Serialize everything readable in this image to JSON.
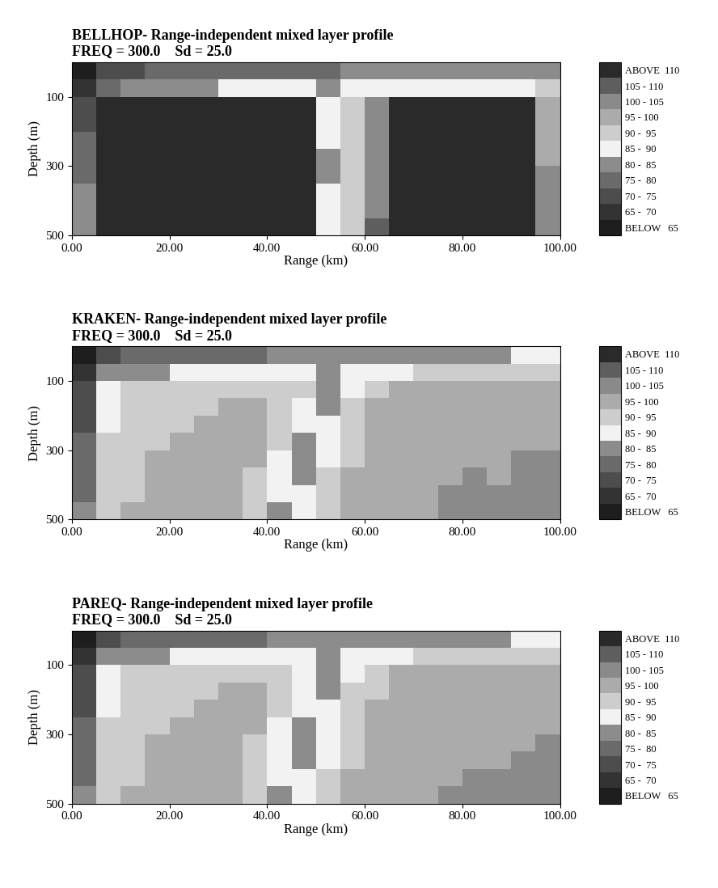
{
  "chart_data": [
    {
      "type": "heatmap",
      "title": "BELLHOP- Range-independent mixed layer profile",
      "subtitle": "FREQ = 300.0    Sd = 25.0",
      "x_label": "Range (km)",
      "y_label": "Depth (m)",
      "xlim": [
        0,
        100
      ],
      "ylim": [
        500,
        0
      ],
      "xticks": [
        {
          "value": 0,
          "label": "0.00"
        },
        {
          "value": 20,
          "label": "20.00"
        },
        {
          "value": 40,
          "label": "40.00"
        },
        {
          "value": 60,
          "label": "60.00"
        },
        {
          "value": 80,
          "label": "80.00"
        },
        {
          "value": 100,
          "label": "100.00"
        }
      ],
      "yticks": [
        100,
        300,
        500
      ],
      "x_edges": [
        0,
        5,
        10,
        15,
        20,
        25,
        30,
        35,
        40,
        45,
        50,
        55,
        60,
        65,
        70,
        75,
        80,
        85,
        90,
        95,
        100
      ],
      "y_edges": [
        0,
        50,
        100,
        150,
        200,
        250,
        300,
        350,
        400,
        450,
        500
      ],
      "cells": [
        [
          62,
          72,
          74,
          75,
          76,
          77,
          77,
          78,
          78,
          79,
          79,
          80,
          80,
          81,
          81,
          82,
          82,
          83,
          83,
          84
        ],
        [
          66,
          78,
          80,
          82,
          84,
          84,
          85,
          85,
          86,
          86,
          84,
          85,
          86,
          87,
          87,
          88,
          88,
          89,
          89,
          90
        ],
        [
          72,
          112,
          112,
          112,
          112,
          112,
          112,
          112,
          112,
          112,
          86,
          90,
          100,
          112,
          112,
          112,
          112,
          112,
          112,
          98
        ],
        [
          74,
          112,
          112,
          112,
          112,
          112,
          112,
          112,
          112,
          112,
          85,
          90,
          102,
          112,
          112,
          112,
          112,
          112,
          112,
          98
        ],
        [
          76,
          112,
          112,
          112,
          112,
          112,
          112,
          112,
          112,
          112,
          85,
          91,
          102,
          112,
          112,
          112,
          112,
          112,
          112,
          99
        ],
        [
          77,
          112,
          112,
          112,
          112,
          112,
          112,
          112,
          112,
          112,
          84,
          91,
          103,
          112,
          112,
          112,
          112,
          112,
          112,
          99
        ],
        [
          78,
          112,
          112,
          112,
          112,
          112,
          112,
          112,
          112,
          112,
          84,
          92,
          103,
          112,
          112,
          112,
          112,
          112,
          112,
          100
        ],
        [
          80,
          112,
          112,
          112,
          112,
          112,
          112,
          112,
          112,
          112,
          85,
          92,
          104,
          112,
          112,
          112,
          112,
          112,
          112,
          100
        ],
        [
          81,
          112,
          112,
          112,
          112,
          112,
          112,
          112,
          112,
          112,
          85,
          93,
          104,
          112,
          112,
          112,
          112,
          112,
          112,
          100
        ],
        [
          82,
          112,
          112,
          112,
          112,
          112,
          112,
          112,
          112,
          112,
          86,
          93,
          105,
          112,
          112,
          112,
          112,
          112,
          112,
          101
        ]
      ],
      "colorbar": {
        "range": [
          60,
          115
        ],
        "levels": [
          65,
          70,
          75,
          80,
          85,
          90,
          95,
          100,
          105,
          110
        ],
        "colors": [
          "#1e1e1e",
          "#333333",
          "#4d4d4d",
          "#6a6a6a",
          "#8c8c8c",
          "#f2f2f2",
          "#cdcdcd",
          "#ababab",
          "#8a8a8a",
          "#5e5e5e",
          "#2a2a2a"
        ],
        "ticks": [
          {
            "value": 62.5,
            "label": "BELOW   65"
          },
          {
            "value": 67.5,
            "label": "65 -  70"
          },
          {
            "value": 72.5,
            "label": "70 -  75"
          },
          {
            "value": 77.5,
            "label": "75 -  80"
          },
          {
            "value": 82.5,
            "label": "80 -  85"
          },
          {
            "value": 87.5,
            "label": "85 -  90"
          },
          {
            "value": 92.5,
            "label": "90 -  95"
          },
          {
            "value": 97.5,
            "label": "95 - 100"
          },
          {
            "value": 102.5,
            "label": "100 - 105"
          },
          {
            "value": 107.5,
            "label": "105 - 110"
          },
          {
            "value": 112.5,
            "label": "ABOVE  110"
          }
        ]
      }
    },
    {
      "type": "heatmap",
      "title": "KRAKEN- Range-independent mixed layer profile",
      "subtitle": "FREQ = 300.0    Sd = 25.0",
      "x_label": "Range (km)",
      "y_label": "Depth (m)",
      "xlim": [
        0,
        100
      ],
      "ylim": [
        500,
        0
      ],
      "xticks": [
        {
          "value": 0,
          "label": "0.00"
        },
        {
          "value": 20,
          "label": "20.00"
        },
        {
          "value": 40,
          "label": "40.00"
        },
        {
          "value": 60,
          "label": "60.00"
        },
        {
          "value": 80,
          "label": "80.00"
        },
        {
          "value": 100,
          "label": "100.00"
        }
      ],
      "yticks": [
        100,
        300,
        500
      ],
      "x_edges": [
        0,
        5,
        10,
        15,
        20,
        25,
        30,
        35,
        40,
        45,
        50,
        55,
        60,
        65,
        70,
        75,
        80,
        85,
        90,
        95,
        100
      ],
      "y_edges": [
        0,
        50,
        100,
        150,
        200,
        250,
        300,
        350,
        400,
        450,
        500
      ],
      "cells": [
        [
          62,
          72,
          75,
          76,
          77,
          78,
          78,
          79,
          80,
          80,
          80,
          81,
          82,
          82,
          83,
          83,
          84,
          84,
          85,
          85
        ],
        [
          66,
          80,
          83,
          84,
          86,
          87,
          88,
          88,
          89,
          88,
          84,
          86,
          88,
          89,
          90,
          90,
          91,
          91,
          92,
          92
        ],
        [
          70,
          86,
          91,
          92,
          93,
          93,
          94,
          94,
          94,
          90,
          82,
          88,
          94,
          96,
          95,
          96,
          97,
          96,
          97,
          97
        ],
        [
          72,
          88,
          92,
          93,
          94,
          94,
          95,
          95,
          93,
          88,
          83,
          90,
          95,
          97,
          96,
          97,
          98,
          97,
          98,
          98
        ],
        [
          74,
          89,
          92,
          94,
          94,
          95,
          95,
          96,
          92,
          86,
          85,
          92,
          96,
          97,
          97,
          98,
          98,
          98,
          99,
          99
        ],
        [
          76,
          90,
          93,
          94,
          95,
          95,
          96,
          96,
          90,
          84,
          87,
          93,
          96,
          98,
          97,
          98,
          99,
          98,
          99,
          99
        ],
        [
          77,
          90,
          93,
          95,
          95,
          96,
          96,
          95,
          88,
          83,
          88,
          94,
          97,
          98,
          98,
          99,
          99,
          99,
          100,
          100
        ],
        [
          78,
          91,
          94,
          95,
          96,
          96,
          97,
          94,
          86,
          84,
          90,
          95,
          97,
          98,
          98,
          99,
          100,
          99,
          100,
          100
        ],
        [
          79,
          91,
          94,
          96,
          96,
          97,
          97,
          93,
          85,
          85,
          91,
          95,
          98,
          99,
          98,
          100,
          100,
          100,
          100,
          101
        ],
        [
          80,
          92,
          95,
          96,
          97,
          97,
          97,
          92,
          84,
          86,
          92,
          96,
          98,
          99,
          99,
          100,
          100,
          100,
          101,
          101
        ]
      ],
      "colorbar": {
        "range": [
          60,
          115
        ],
        "levels": [
          65,
          70,
          75,
          80,
          85,
          90,
          95,
          100,
          105,
          110
        ],
        "colors": [
          "#1e1e1e",
          "#333333",
          "#4d4d4d",
          "#6a6a6a",
          "#8c8c8c",
          "#f2f2f2",
          "#cdcdcd",
          "#ababab",
          "#8a8a8a",
          "#5e5e5e",
          "#2a2a2a"
        ],
        "ticks": [
          {
            "value": 62.5,
            "label": "BELOW   65"
          },
          {
            "value": 67.5,
            "label": "65 -  70"
          },
          {
            "value": 72.5,
            "label": "70 -  75"
          },
          {
            "value": 77.5,
            "label": "75 -  80"
          },
          {
            "value": 82.5,
            "label": "80 -  85"
          },
          {
            "value": 87.5,
            "label": "85 -  90"
          },
          {
            "value": 92.5,
            "label": "90 -  95"
          },
          {
            "value": 97.5,
            "label": "95 - 100"
          },
          {
            "value": 102.5,
            "label": "100 - 105"
          },
          {
            "value": 107.5,
            "label": "105 - 110"
          },
          {
            "value": 112.5,
            "label": "ABOVE  110"
          }
        ]
      }
    },
    {
      "type": "heatmap",
      "title": "PAREQ- Range-independent mixed layer profile",
      "subtitle": "FREQ = 300.0    Sd = 25.0",
      "x_label": "Range (km)",
      "y_label": "Depth (m)",
      "xlim": [
        0,
        100
      ],
      "ylim": [
        500,
        0
      ],
      "xticks": [
        {
          "value": 0,
          "label": "0.00"
        },
        {
          "value": 20,
          "label": "20.00"
        },
        {
          "value": 40,
          "label": "40.00"
        },
        {
          "value": 60,
          "label": "60.00"
        },
        {
          "value": 80,
          "label": "80.00"
        },
        {
          "value": 100,
          "label": "100.00"
        }
      ],
      "yticks": [
        100,
        300,
        500
      ],
      "x_edges": [
        0,
        5,
        10,
        15,
        20,
        25,
        30,
        35,
        40,
        45,
        50,
        55,
        60,
        65,
        70,
        75,
        80,
        85,
        90,
        95,
        100
      ],
      "y_edges": [
        0,
        50,
        100,
        150,
        200,
        250,
        300,
        350,
        400,
        450,
        500
      ],
      "cells": [
        [
          62,
          72,
          75,
          76,
          77,
          78,
          78,
          79,
          80,
          80,
          80,
          81,
          82,
          82,
          83,
          83,
          84,
          84,
          85,
          85
        ],
        [
          66,
          80,
          83,
          84,
          86,
          87,
          88,
          88,
          89,
          88,
          84,
          86,
          88,
          89,
          90,
          90,
          91,
          91,
          92,
          92
        ],
        [
          70,
          87,
          91,
          92,
          93,
          93,
          94,
          94,
          93,
          89,
          82,
          88,
          93,
          95,
          95,
          96,
          96,
          96,
          97,
          97
        ],
        [
          72,
          88,
          92,
          93,
          94,
          94,
          95,
          95,
          92,
          87,
          83,
          90,
          94,
          96,
          96,
          97,
          97,
          97,
          98,
          98
        ],
        [
          74,
          89,
          92,
          94,
          94,
          95,
          95,
          95,
          91,
          86,
          85,
          91,
          95,
          97,
          97,
          97,
          98,
          98,
          98,
          99
        ],
        [
          76,
          90,
          93,
          94,
          95,
          95,
          96,
          95,
          89,
          84,
          86,
          92,
          96,
          97,
          97,
          98,
          98,
          98,
          99,
          99
        ],
        [
          77,
          90,
          93,
          95,
          95,
          96,
          96,
          94,
          88,
          83,
          88,
          93,
          96,
          98,
          98,
          98,
          99,
          99,
          99,
          100
        ],
        [
          78,
          91,
          94,
          95,
          96,
          96,
          96,
          93,
          86,
          84,
          89,
          94,
          97,
          98,
          98,
          99,
          99,
          99,
          100,
          100
        ],
        [
          79,
          91,
          94,
          95,
          96,
          96,
          96,
          92,
          85,
          85,
          90,
          95,
          97,
          98,
          98,
          99,
          100,
          100,
          100,
          100
        ],
        [
          80,
          92,
          95,
          96,
          96,
          97,
          96,
          91,
          84,
          86,
          91,
          95,
          98,
          99,
          99,
          100,
          100,
          100,
          100,
          101
        ]
      ],
      "colorbar": {
        "range": [
          60,
          115
        ],
        "levels": [
          65,
          70,
          75,
          80,
          85,
          90,
          95,
          100,
          105,
          110
        ],
        "colors": [
          "#1e1e1e",
          "#333333",
          "#4d4d4d",
          "#6a6a6a",
          "#8c8c8c",
          "#f2f2f2",
          "#cdcdcd",
          "#ababab",
          "#8a8a8a",
          "#5e5e5e",
          "#2a2a2a"
        ],
        "ticks": [
          {
            "value": 62.5,
            "label": "BELOW   65"
          },
          {
            "value": 67.5,
            "label": "65 -  70"
          },
          {
            "value": 72.5,
            "label": "70 -  75"
          },
          {
            "value": 77.5,
            "label": "75 -  80"
          },
          {
            "value": 82.5,
            "label": "80 -  85"
          },
          {
            "value": 87.5,
            "label": "85 -  90"
          },
          {
            "value": 92.5,
            "label": "90 -  95"
          },
          {
            "value": 97.5,
            "label": "95 - 100"
          },
          {
            "value": 102.5,
            "label": "100 - 105"
          },
          {
            "value": 107.5,
            "label": "105 - 110"
          },
          {
            "value": 112.5,
            "label": "ABOVE  110"
          }
        ]
      }
    }
  ]
}
